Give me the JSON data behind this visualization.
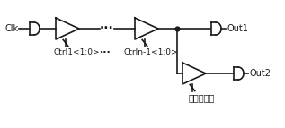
{
  "clk_label": "Clk",
  "out1_label": "Out1",
  "out2_label": "Out2",
  "ctrl1_label": "Ctrl1<1:0>",
  "ctrln_label": "Ctrln-1<1:0>",
  "dots_label": "···",
  "dots_ctrl_label": "···",
  "jitter_label": "抖动控制字",
  "bg_color": "#ffffff",
  "line_color": "#1a1a1a",
  "font_size": 7,
  "fig_width": 3.17,
  "fig_height": 1.43,
  "dpi": 100
}
